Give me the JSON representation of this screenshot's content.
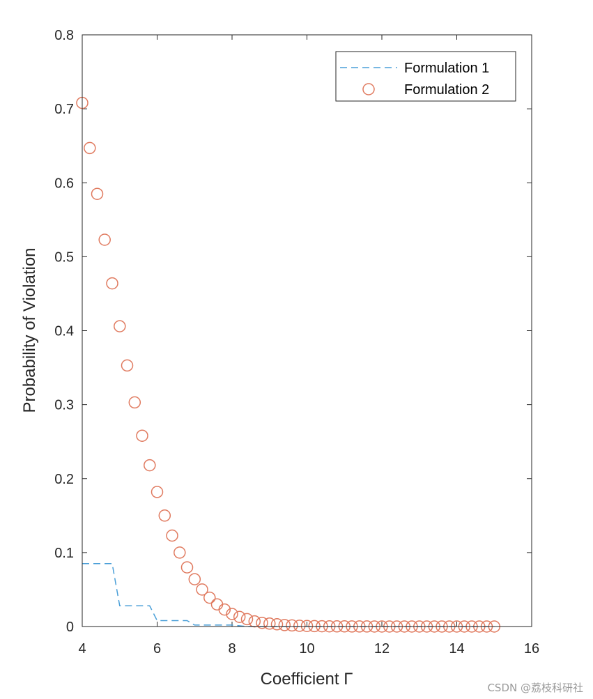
{
  "chart_data": {
    "type": "line",
    "xlabel": "Coefficient Γ",
    "ylabel": "Probability of Violation",
    "xlim": [
      4,
      16
    ],
    "ylim": [
      0,
      0.8
    ],
    "xticks": [
      "4",
      "6",
      "8",
      "10",
      "12",
      "14",
      "16"
    ],
    "yticks": [
      "0",
      "0.1",
      "0.2",
      "0.3",
      "0.4",
      "0.5",
      "0.6",
      "0.7",
      "0.8"
    ],
    "grid": false,
    "legend_position": "top-right",
    "series": [
      {
        "name": "Formulation 1",
        "style": "dashed-line",
        "color": "#4a9fd8",
        "x": [
          4.0,
          4.8,
          5.0,
          5.8,
          6.0,
          6.8,
          7.0,
          8.0,
          8.4,
          15.0
        ],
        "y": [
          0.085,
          0.085,
          0.028,
          0.028,
          0.008,
          0.008,
          0.002,
          0.002,
          0.0,
          0.0
        ]
      },
      {
        "name": "Formulation 2",
        "style": "circle-markers",
        "color": "#e07a5f",
        "x": [
          4.0,
          4.2,
          4.4,
          4.6,
          4.8,
          5.0,
          5.2,
          5.4,
          5.6,
          5.8,
          6.0,
          6.2,
          6.4,
          6.6,
          6.8,
          7.0,
          7.2,
          7.4,
          7.6,
          7.8,
          8.0,
          8.2,
          8.4,
          8.6,
          8.8,
          9.0,
          9.2,
          9.4,
          9.6,
          9.8,
          10.0,
          10.2,
          10.4,
          10.6,
          10.8,
          11.0,
          11.2,
          11.4,
          11.6,
          11.8,
          12.0,
          12.2,
          12.4,
          12.6,
          12.8,
          13.0,
          13.2,
          13.4,
          13.6,
          13.8,
          14.0,
          14.2,
          14.4,
          14.6,
          14.8,
          15.0
        ],
        "y": [
          0.708,
          0.647,
          0.585,
          0.523,
          0.464,
          0.406,
          0.353,
          0.303,
          0.258,
          0.218,
          0.182,
          0.15,
          0.123,
          0.1,
          0.08,
          0.064,
          0.05,
          0.039,
          0.03,
          0.023,
          0.017,
          0.013,
          0.01,
          0.007,
          0.005,
          0.004,
          0.003,
          0.002,
          0.0015,
          0.001,
          0.0008,
          0.0006,
          0.0004,
          0.0003,
          0.0002,
          0.0002,
          0.0001,
          0.0001,
          0.0001,
          0.0,
          0.0,
          0.0,
          0.0,
          0.0,
          0.0,
          0.0,
          0.0,
          0.0,
          0.0,
          0.0,
          0.0,
          0.0,
          0.0,
          0.0,
          0.0,
          0.0
        ]
      }
    ]
  },
  "watermark": "CSDN @荔枝科研社"
}
